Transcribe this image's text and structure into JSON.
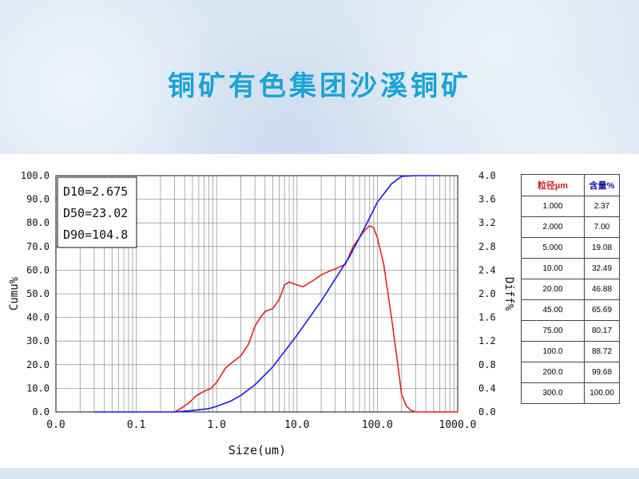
{
  "slide": {
    "title": "铜矿有色集团沙溪铜矿"
  },
  "stats": {
    "d10": "D10=2.675",
    "d50": "D50=23.02",
    "d90": "D90=104.8"
  },
  "table": {
    "headers": [
      "粒径µm",
      "含量%"
    ],
    "rows": [
      [
        "1.000",
        "2.37"
      ],
      [
        "2.000",
        "7.00"
      ],
      [
        "5.000",
        "19.08"
      ],
      [
        "10.00",
        "32.49"
      ],
      [
        "20.00",
        "46.88"
      ],
      [
        "45.00",
        "65.69"
      ],
      [
        "75.00",
        "80.17"
      ],
      [
        "100.0",
        "88.72"
      ],
      [
        "200.0",
        "99.68"
      ],
      [
        "300.0",
        "100.00"
      ]
    ]
  },
  "chart_data": {
    "type": "line",
    "xlabel": "Size(um)",
    "ylabel_left": "Cumu%",
    "ylabel_right": "Diff%",
    "x_scale": "log",
    "xlim": [
      0.01,
      1000
    ],
    "ylim_left": [
      0,
      100
    ],
    "ylim_right": [
      0,
      4
    ],
    "x_tick_labels": [
      "0.0",
      "0.1",
      "1.0",
      "10.0",
      "100.0",
      "1000.0"
    ],
    "y_left_tick_labels": [
      "0.0",
      "10.0",
      "20.0",
      "30.0",
      "40.0",
      "50.0",
      "60.0",
      "70.0",
      "80.0",
      "90.0",
      "100.0"
    ],
    "y_right_tick_labels": [
      "0.0",
      "0.4",
      "0.8",
      "1.2",
      "1.6",
      "2.0",
      "2.4",
      "2.8",
      "3.2",
      "3.6",
      "4.0"
    ],
    "grid": true,
    "colors": {
      "cumulative": "#1a1ae6",
      "differential": "#e62020"
    },
    "series": [
      {
        "axis": "left",
        "x": [
          0.03,
          0.3,
          0.5,
          0.8,
          1.0,
          1.5,
          2.0,
          3.0,
          5.0,
          10.0,
          20.0,
          45.0,
          75.0,
          100.0,
          150.0,
          200.0,
          300.0,
          600.0
        ],
        "y": [
          0,
          0,
          0.6,
          1.4,
          2.37,
          4.6,
          7.0,
          11.5,
          19.08,
          32.49,
          46.88,
          65.69,
          80.17,
          88.72,
          96.5,
          99.68,
          100,
          100
        ]
      },
      {
        "axis": "right",
        "x": [
          0.3,
          0.35,
          0.45,
          0.55,
          0.7,
          0.85,
          1.0,
          1.3,
          1.6,
          2.0,
          2.5,
          3.0,
          3.5,
          4.0,
          5.0,
          6.0,
          7.0,
          8.0,
          9.0,
          10.0,
          12.0,
          14.0,
          17.0,
          20.0,
          25.0,
          30.0,
          40.0,
          50.0,
          60.0,
          70.0,
          80.0,
          90.0,
          100.0,
          120.0,
          150.0,
          180.0,
          200.0,
          230.0,
          260.0,
          300.0,
          500.0,
          1000.0
        ],
        "y": [
          0,
          0.05,
          0.15,
          0.27,
          0.35,
          0.4,
          0.5,
          0.75,
          0.85,
          0.95,
          1.15,
          1.45,
          1.6,
          1.7,
          1.75,
          1.9,
          2.15,
          2.2,
          2.17,
          2.15,
          2.12,
          2.18,
          2.25,
          2.32,
          2.38,
          2.42,
          2.5,
          2.8,
          2.95,
          3.08,
          3.15,
          3.12,
          2.95,
          2.5,
          1.6,
          0.8,
          0.3,
          0.1,
          0.03,
          0,
          0,
          0
        ]
      }
    ]
  }
}
